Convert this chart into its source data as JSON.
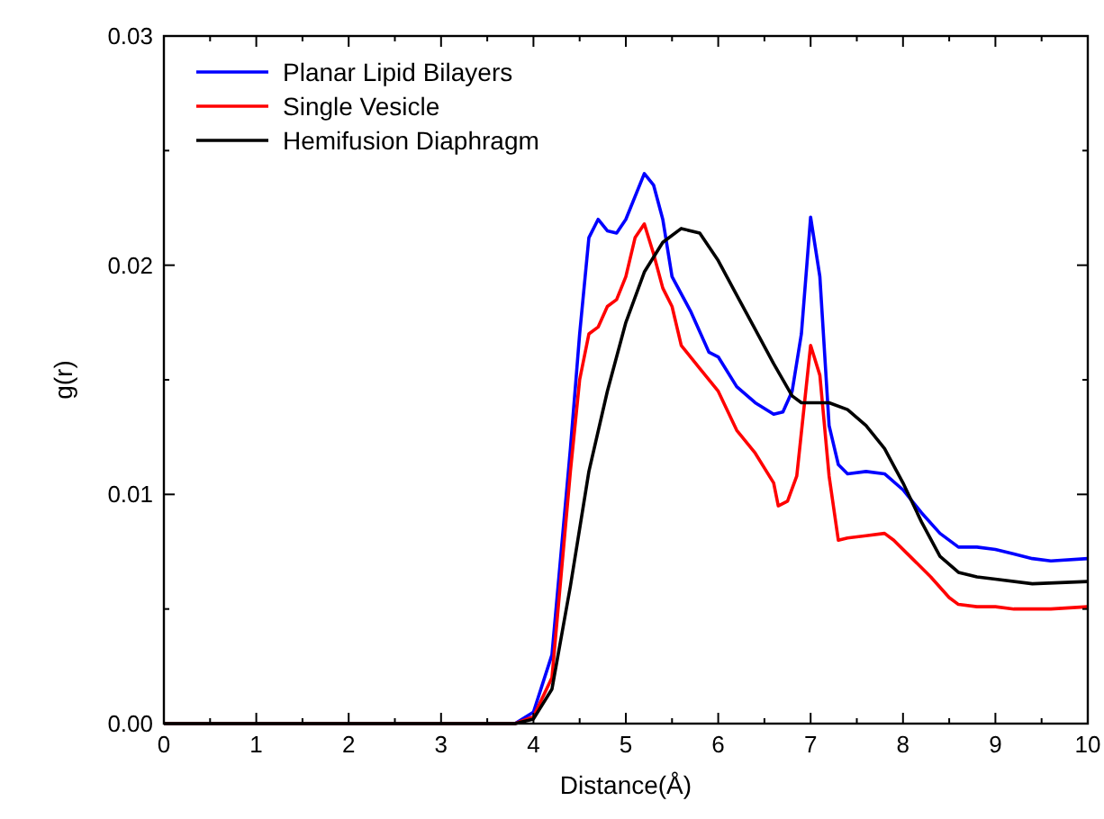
{
  "chart_data": {
    "type": "line",
    "xlabel": "Distance(Å)",
    "ylabel": "g(r)",
    "xlim": [
      0,
      10
    ],
    "ylim": [
      0,
      0.03
    ],
    "xticks": [
      0,
      {
        "value": 0.5,
        "label": null
      },
      1,
      {
        "value": 1.5,
        "label": null
      },
      2,
      {
        "value": 2.5,
        "label": null
      },
      3,
      {
        "value": 3.5,
        "label": null
      },
      4,
      {
        "value": 4.5,
        "label": null
      },
      5,
      {
        "value": 5.5,
        "label": null
      },
      6,
      {
        "value": 6.5,
        "label": null
      },
      7,
      {
        "value": 7.5,
        "label": null
      },
      8,
      {
        "value": 8.5,
        "label": null
      },
      9,
      {
        "value": 9.5,
        "label": null
      },
      10
    ],
    "yticks": [
      {
        "value": 0,
        "label": "0.00"
      },
      {
        "value": 0.005,
        "label": null
      },
      {
        "value": 0.01,
        "label": "0.01"
      },
      {
        "value": 0.015,
        "label": null
      },
      {
        "value": 0.02,
        "label": "0.02"
      },
      {
        "value": 0.025,
        "label": null
      },
      {
        "value": 0.03,
        "label": "0.03"
      }
    ],
    "legend": "top left",
    "grid": false,
    "marker": "none",
    "line_style": "solid",
    "series": [
      {
        "name": "Planar Lipid Bilayers",
        "color": "#0000ff",
        "x": [
          0,
          3.8,
          4.0,
          4.2,
          4.4,
          4.5,
          4.6,
          4.7,
          4.8,
          4.9,
          5.0,
          5.2,
          5.3,
          5.4,
          5.5,
          5.7,
          5.9,
          6.0,
          6.2,
          6.4,
          6.6,
          6.7,
          6.8,
          6.9,
          7.0,
          7.1,
          7.2,
          7.3,
          7.4,
          7.6,
          7.8,
          8.0,
          8.2,
          8.4,
          8.6,
          8.8,
          9.0,
          9.2,
          9.4,
          9.6,
          10
        ],
        "values": [
          0,
          0,
          0.0005,
          0.003,
          0.012,
          0.017,
          0.0212,
          0.022,
          0.0215,
          0.0214,
          0.022,
          0.024,
          0.0235,
          0.022,
          0.0195,
          0.018,
          0.0162,
          0.016,
          0.0147,
          0.014,
          0.0135,
          0.0136,
          0.0145,
          0.017,
          0.0221,
          0.0195,
          0.013,
          0.0113,
          0.0109,
          0.011,
          0.0109,
          0.0102,
          0.0092,
          0.0083,
          0.0077,
          0.0077,
          0.0076,
          0.0074,
          0.0072,
          0.0071,
          0.0072
        ]
      },
      {
        "name": "Single Vesicle",
        "color": "#ff0000",
        "x": [
          0,
          3.8,
          4.0,
          4.2,
          4.4,
          4.5,
          4.6,
          4.7,
          4.8,
          4.9,
          5.0,
          5.1,
          5.2,
          5.3,
          5.4,
          5.5,
          5.6,
          5.8,
          6.0,
          6.2,
          6.4,
          6.6,
          6.65,
          6.75,
          6.85,
          7.0,
          7.1,
          7.2,
          7.3,
          7.4,
          7.6,
          7.8,
          7.9,
          8.1,
          8.3,
          8.5,
          8.6,
          8.8,
          9.0,
          9.2,
          9.4,
          9.6,
          10
        ],
        "values": [
          0,
          0,
          0.0003,
          0.002,
          0.011,
          0.015,
          0.017,
          0.0173,
          0.0182,
          0.0185,
          0.0195,
          0.0212,
          0.0218,
          0.0205,
          0.019,
          0.0182,
          0.0165,
          0.0155,
          0.0145,
          0.0128,
          0.0118,
          0.0105,
          0.0095,
          0.0097,
          0.0108,
          0.0165,
          0.0152,
          0.0108,
          0.008,
          0.0081,
          0.0082,
          0.0083,
          0.008,
          0.0072,
          0.0064,
          0.0055,
          0.0052,
          0.0051,
          0.0051,
          0.005,
          0.005,
          0.005,
          0.0051
        ]
      },
      {
        "name": "Hemifusion Diaphragm",
        "color": "#000000",
        "x": [
          0,
          3.8,
          4.0,
          4.2,
          4.4,
          4.6,
          4.8,
          5.0,
          5.2,
          5.4,
          5.6,
          5.8,
          6.0,
          6.2,
          6.4,
          6.6,
          6.8,
          6.9,
          7.2,
          7.4,
          7.6,
          7.8,
          8.0,
          8.2,
          8.4,
          8.6,
          8.8,
          9.0,
          9.4,
          10
        ],
        "values": [
          0,
          0,
          0.0002,
          0.0015,
          0.006,
          0.011,
          0.0145,
          0.0175,
          0.0197,
          0.021,
          0.0216,
          0.0214,
          0.0202,
          0.0187,
          0.0172,
          0.0157,
          0.0143,
          0.014,
          0.014,
          0.0137,
          0.013,
          0.012,
          0.0105,
          0.0088,
          0.0073,
          0.0066,
          0.0064,
          0.0063,
          0.0061,
          0.0062
        ]
      }
    ]
  }
}
